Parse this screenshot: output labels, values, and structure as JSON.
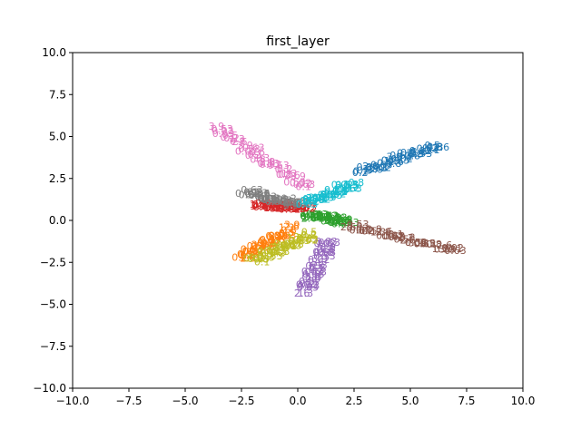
{
  "chart_data": {
    "type": "scatter",
    "title": "first_layer",
    "xlabel": "",
    "ylabel": "",
    "xlim": [
      -10,
      10
    ],
    "ylim": [
      -10,
      10
    ],
    "grid": false,
    "legend": "none",
    "x_ticks": [
      -10,
      -7.5,
      -5,
      -2.5,
      0,
      2.5,
      5,
      7.5,
      10
    ],
    "x_tick_labels": [
      "−10.0",
      "−7.5",
      "−5.0",
      "−2.5",
      "0.0",
      "2.5",
      "5.0",
      "7.5",
      "10.0"
    ],
    "y_ticks": [
      -10,
      -7.5,
      -5,
      -2.5,
      0,
      2.5,
      5,
      7.5,
      10
    ],
    "y_tick_labels": [
      "−10.0",
      "−7.5",
      "−5.0",
      "−2.5",
      "0.0",
      "2.5",
      "5.0",
      "7.5",
      "10.0"
    ],
    "marker": "text",
    "series": [
      {
        "color": "#1f77b4",
        "from": [
          2.8,
          2.7
        ],
        "to": [
          6.3,
          4.3
        ]
      },
      {
        "color": "#ff7f0e",
        "from": [
          -2.5,
          -2.5
        ],
        "to": [
          -0.2,
          -0.6
        ]
      },
      {
        "color": "#2ca02c",
        "from": [
          0.5,
          0.1
        ],
        "to": [
          2.2,
          -0.3
        ]
      },
      {
        "color": "#d62728",
        "from": [
          -1.8,
          0.8
        ],
        "to": [
          0.3,
          0.5
        ]
      },
      {
        "color": "#9467bd",
        "from": [
          0.3,
          -4.5
        ],
        "to": [
          1.4,
          -1.4
        ]
      },
      {
        "color": "#8c564b",
        "from": [
          2.4,
          -0.5
        ],
        "to": [
          7.0,
          -2.0
        ]
      },
      {
        "color": "#e377c2",
        "from": [
          -3.5,
          5.3
        ],
        "to": [
          0.4,
          1.8
        ]
      },
      {
        "color": "#7f7f7f",
        "from": [
          -2.3,
          1.5
        ],
        "to": [
          0.3,
          0.7
        ]
      },
      {
        "color": "#bcbd22",
        "from": [
          -1.9,
          -2.6
        ],
        "to": [
          0.6,
          -1.0
        ]
      },
      {
        "color": "#17becf",
        "from": [
          0.4,
          0.8
        ],
        "to": [
          2.5,
          2.0
        ]
      }
    ]
  }
}
